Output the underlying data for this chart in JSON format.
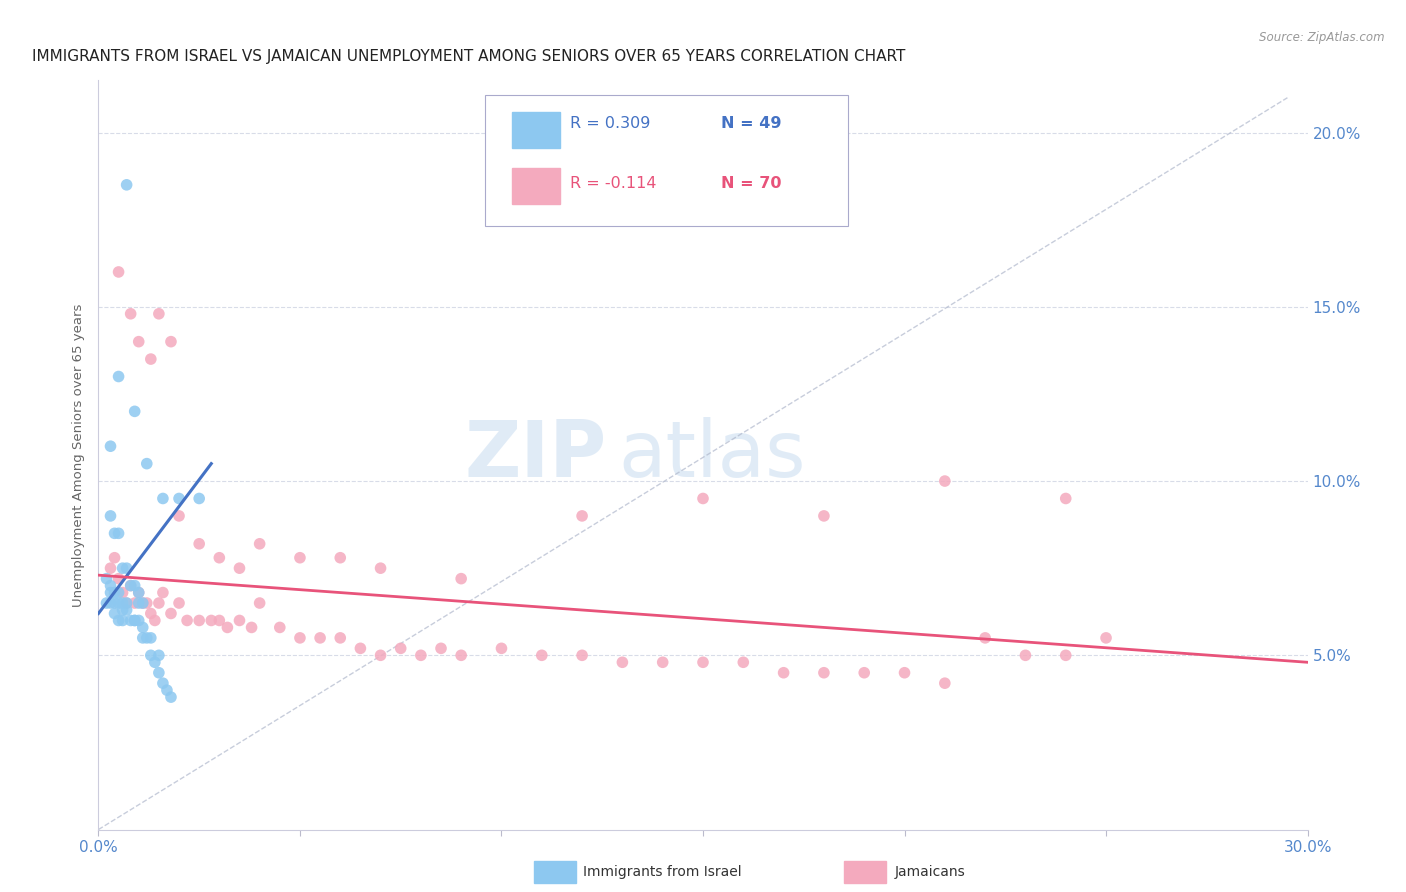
{
  "title": "IMMIGRANTS FROM ISRAEL VS JAMAICAN UNEMPLOYMENT AMONG SENIORS OVER 65 YEARS CORRELATION CHART",
  "source": "Source: ZipAtlas.com",
  "ylabel": "Unemployment Among Seniors over 65 years",
  "xlim": [
    0.0,
    0.3
  ],
  "ylim": [
    0.0,
    0.215
  ],
  "xticks": [
    0.0,
    0.05,
    0.1,
    0.15,
    0.2,
    0.25,
    0.3
  ],
  "xticklabels": [
    "0.0%",
    "",
    "",
    "",
    "",
    "",
    "30.0%"
  ],
  "yticks": [
    0.05,
    0.1,
    0.15,
    0.2
  ],
  "yticklabels": [
    "5.0%",
    "10.0%",
    "15.0%",
    "20.0%"
  ],
  "blue_color": "#8DC8F0",
  "pink_color": "#F4AABE",
  "blue_line_color": "#4472C4",
  "pink_line_color": "#E8537A",
  "dashed_line_color": "#B0B8CC",
  "legend_R1": "R = 0.309",
  "legend_N1": "N = 49",
  "legend_R2": "R = -0.114",
  "legend_N2": "N = 70",
  "watermark_zip": "ZIP",
  "watermark_atlas": "atlas",
  "axis_color": "#5588CC",
  "grid_color": "#D8DCE8",
  "blue_scatter_x": [
    0.003,
    0.004,
    0.005,
    0.006,
    0.007,
    0.008,
    0.009,
    0.01,
    0.01,
    0.011,
    0.002,
    0.003,
    0.003,
    0.004,
    0.004,
    0.005,
    0.005,
    0.006,
    0.006,
    0.007,
    0.008,
    0.009,
    0.01,
    0.011,
    0.012,
    0.013,
    0.014,
    0.015,
    0.016,
    0.017,
    0.018,
    0.002,
    0.003,
    0.004,
    0.005,
    0.006,
    0.007,
    0.009,
    0.011,
    0.013,
    0.015,
    0.003,
    0.005,
    0.007,
    0.009,
    0.012,
    0.016,
    0.02,
    0.025
  ],
  "blue_scatter_y": [
    0.09,
    0.085,
    0.085,
    0.075,
    0.075,
    0.07,
    0.07,
    0.068,
    0.065,
    0.065,
    0.065,
    0.068,
    0.065,
    0.065,
    0.062,
    0.065,
    0.06,
    0.063,
    0.06,
    0.063,
    0.06,
    0.06,
    0.06,
    0.055,
    0.055,
    0.05,
    0.048,
    0.045,
    0.042,
    0.04,
    0.038,
    0.072,
    0.07,
    0.068,
    0.068,
    0.065,
    0.065,
    0.06,
    0.058,
    0.055,
    0.05,
    0.11,
    0.13,
    0.185,
    0.12,
    0.105,
    0.095,
    0.095,
    0.095
  ],
  "pink_scatter_x": [
    0.003,
    0.004,
    0.005,
    0.006,
    0.007,
    0.008,
    0.009,
    0.01,
    0.011,
    0.012,
    0.013,
    0.014,
    0.015,
    0.016,
    0.018,
    0.02,
    0.022,
    0.025,
    0.028,
    0.03,
    0.032,
    0.035,
    0.038,
    0.04,
    0.045,
    0.05,
    0.055,
    0.06,
    0.065,
    0.07,
    0.075,
    0.08,
    0.085,
    0.09,
    0.1,
    0.11,
    0.12,
    0.13,
    0.14,
    0.15,
    0.16,
    0.17,
    0.18,
    0.19,
    0.2,
    0.21,
    0.22,
    0.23,
    0.24,
    0.25,
    0.005,
    0.008,
    0.01,
    0.013,
    0.015,
    0.018,
    0.02,
    0.025,
    0.03,
    0.035,
    0.04,
    0.05,
    0.06,
    0.07,
    0.09,
    0.12,
    0.15,
    0.18,
    0.21,
    0.24
  ],
  "pink_scatter_y": [
    0.075,
    0.078,
    0.072,
    0.068,
    0.065,
    0.07,
    0.065,
    0.068,
    0.065,
    0.065,
    0.062,
    0.06,
    0.065,
    0.068,
    0.062,
    0.065,
    0.06,
    0.06,
    0.06,
    0.06,
    0.058,
    0.06,
    0.058,
    0.065,
    0.058,
    0.055,
    0.055,
    0.055,
    0.052,
    0.05,
    0.052,
    0.05,
    0.052,
    0.05,
    0.052,
    0.05,
    0.05,
    0.048,
    0.048,
    0.048,
    0.048,
    0.045,
    0.045,
    0.045,
    0.045,
    0.042,
    0.055,
    0.05,
    0.05,
    0.055,
    0.16,
    0.148,
    0.14,
    0.135,
    0.148,
    0.14,
    0.09,
    0.082,
    0.078,
    0.075,
    0.082,
    0.078,
    0.078,
    0.075,
    0.072,
    0.09,
    0.095,
    0.09,
    0.1,
    0.095
  ],
  "blue_trend_x": [
    0.0,
    0.028
  ],
  "blue_trend_y": [
    0.062,
    0.105
  ],
  "pink_trend_x": [
    0.0,
    0.3
  ],
  "pink_trend_y": [
    0.073,
    0.048
  ]
}
